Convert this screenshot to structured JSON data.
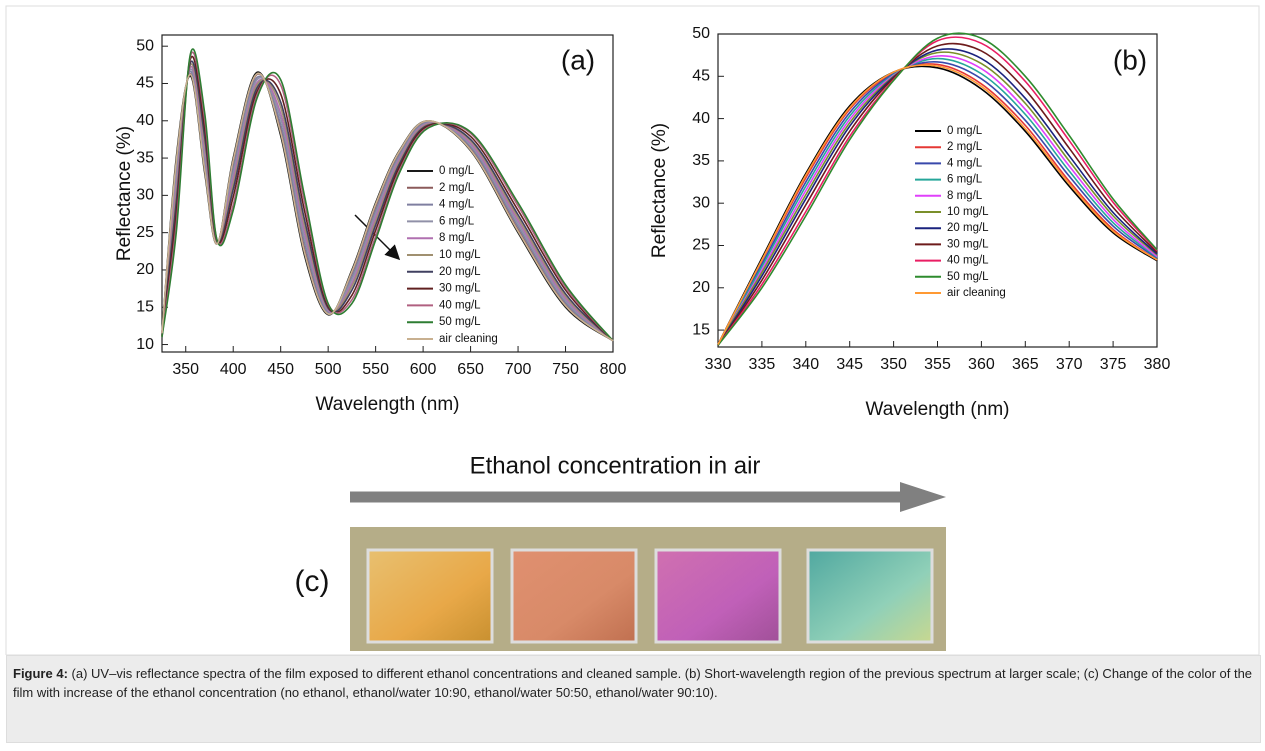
{
  "chart_data": [
    {
      "type": "line",
      "panel_label": "(a)",
      "x_label": "Wavelength (nm)",
      "y_label": "Reflectance (%)",
      "xlim": [
        325,
        800
      ],
      "ylim": [
        9,
        51.5
      ],
      "xticks": [
        350,
        400,
        450,
        500,
        550,
        600,
        650,
        700,
        750,
        800
      ],
      "yticks": [
        10,
        15,
        20,
        25,
        30,
        35,
        40,
        45,
        50
      ],
      "x": [
        325,
        340,
        355,
        370,
        383,
        400,
        425,
        450,
        475,
        500,
        525,
        550,
        575,
        605,
        650,
        700,
        750,
        800
      ],
      "series": [
        {
          "name": "0 mg/L",
          "color": "#1a1a1a",
          "values": [
            11.5,
            35,
            46,
            33,
            23.5,
            35,
            46.5,
            38,
            22,
            14,
            20,
            29,
            36,
            40,
            36,
            25,
            15,
            10.5
          ]
        },
        {
          "name": "2 mg/L",
          "color": "#8b5a5a",
          "values": [
            11.5,
            34,
            46.3,
            33.8,
            23.6,
            34.3,
            46.2,
            38.8,
            22.8,
            14.2,
            19.6,
            28.5,
            35.7,
            39.9,
            36.3,
            25.4,
            15.3,
            10.5
          ]
        },
        {
          "name": "4 mg/L",
          "color": "#7f7fa0",
          "values": [
            11.4,
            33,
            46.6,
            34.6,
            23.6,
            33.6,
            45.8,
            39.5,
            23.6,
            14.3,
            19.1,
            28,
            35.4,
            39.8,
            36.5,
            25.8,
            15.6,
            10.5
          ]
        },
        {
          "name": "6 mg/L",
          "color": "#9090a8",
          "values": [
            11.4,
            32,
            46.9,
            35.4,
            23.7,
            32.9,
            45.5,
            40.3,
            24.4,
            14.5,
            18.7,
            27.5,
            35.1,
            39.7,
            36.8,
            26.2,
            15.9,
            10.5
          ]
        },
        {
          "name": "8 mg/L",
          "color": "#b070b0",
          "values": [
            11.3,
            31,
            47.2,
            36.2,
            23.7,
            32.2,
            45.1,
            41,
            25.2,
            14.6,
            18.2,
            27,
            34.8,
            39.6,
            37,
            26.6,
            16.2,
            10.5
          ]
        },
        {
          "name": "10 mg/L",
          "color": "#a09070",
          "values": [
            11.3,
            30,
            47.5,
            37,
            23.8,
            31.5,
            44.8,
            41.8,
            26,
            14.8,
            17.8,
            26.5,
            34.5,
            39.5,
            37.3,
            27,
            16.5,
            10.5
          ]
        },
        {
          "name": "20 mg/L",
          "color": "#404060",
          "values": [
            11.2,
            29,
            47.8,
            37.8,
            23.8,
            30.8,
            44.4,
            42.5,
            26.8,
            14.9,
            17.3,
            26,
            34.2,
            39.4,
            37.5,
            27.4,
            16.8,
            10.5
          ]
        },
        {
          "name": "30 mg/L",
          "color": "#602020",
          "values": [
            11.1,
            27.5,
            48.3,
            39,
            23.9,
            29.8,
            43.9,
            43.6,
            28,
            15.1,
            16.6,
            25.3,
            33.8,
            39.3,
            37.9,
            28,
            17.3,
            10.5
          ]
        },
        {
          "name": "40 mg/L",
          "color": "#b06080",
          "values": [
            11.1,
            26,
            48.7,
            40.2,
            24,
            28.7,
            43.4,
            44.8,
            29.2,
            15.4,
            16,
            24.5,
            33.3,
            39.1,
            38.3,
            28.6,
            17.7,
            10.5
          ]
        },
        {
          "name": "50 mg/L",
          "color": "#2e7d32",
          "values": [
            11,
            25,
            49,
            41,
            24,
            28,
            43,
            45.5,
            30,
            15.5,
            15.5,
            24,
            33,
            39,
            38.5,
            29,
            18,
            10.5
          ]
        },
        {
          "name": "air cleaning",
          "color": "#c8b090",
          "values": [
            11.5,
            34.5,
            46.2,
            33.4,
            23.5,
            34.7,
            46.3,
            38.4,
            22.4,
            14.1,
            19.8,
            28.8,
            35.9,
            40,
            36.1,
            25.2,
            15.2,
            10.5
          ]
        }
      ]
    },
    {
      "type": "line",
      "panel_label": "(b)",
      "x_label": "Wavelength (nm)",
      "y_label": "Reflectance (%)",
      "xlim": [
        330,
        380
      ],
      "ylim": [
        13,
        50
      ],
      "xticks": [
        330,
        335,
        340,
        345,
        350,
        355,
        360,
        365,
        370,
        375,
        380
      ],
      "yticks": [
        15,
        20,
        25,
        30,
        35,
        40,
        45,
        50
      ],
      "x": [
        330,
        335,
        340,
        345,
        350,
        355,
        360,
        365,
        370,
        375,
        380
      ],
      "series": [
        {
          "name": "0 mg/L",
          "color": "#000000",
          "values": [
            13.3,
            23.5,
            33.5,
            41.5,
            45.5,
            46,
            43.5,
            38.5,
            32,
            26.5,
            23.2
          ]
        },
        {
          "name": "2 mg/L",
          "color": "#e53935",
          "values": [
            13.3,
            23.2,
            33,
            41.1,
            45.4,
            46.4,
            44.1,
            39.2,
            32.6,
            26.9,
            23.3
          ]
        },
        {
          "name": "4 mg/L",
          "color": "#3949ab",
          "values": [
            13.3,
            22.8,
            32.5,
            40.7,
            45.3,
            46.7,
            44.7,
            39.8,
            33.2,
            27.3,
            23.5
          ]
        },
        {
          "name": "6 mg/L",
          "color": "#26a69a",
          "values": [
            13.3,
            22.5,
            32,
            40.3,
            45.2,
            47.1,
            45.3,
            40.5,
            33.8,
            27.7,
            23.6
          ]
        },
        {
          "name": "8 mg/L",
          "color": "#e040fb",
          "values": [
            13.3,
            22.1,
            31.5,
            39.9,
            45.1,
            47.4,
            45.9,
            41.1,
            34.4,
            28.1,
            23.7
          ]
        },
        {
          "name": "10 mg/L",
          "color": "#7a8f2a",
          "values": [
            13.3,
            21.8,
            31,
            39.5,
            45,
            47.8,
            46.5,
            41.8,
            35,
            28.5,
            23.9
          ]
        },
        {
          "name": "20 mg/L",
          "color": "#1a237e",
          "values": [
            13.2,
            21.4,
            30.5,
            39.1,
            44.9,
            48.1,
            47.1,
            42.4,
            35.6,
            28.9,
            24
          ]
        },
        {
          "name": "30 mg/L",
          "color": "#6d1b1b",
          "values": [
            13.2,
            20.9,
            29.8,
            38.5,
            44.8,
            48.6,
            48,
            43.4,
            36.5,
            29.5,
            24.2
          ]
        },
        {
          "name": "40 mg/L",
          "color": "#e91e63",
          "values": [
            13.2,
            20.4,
            29,
            37.9,
            44.6,
            49.2,
            48.9,
            44.4,
            37.4,
            30.1,
            24.4
          ]
        },
        {
          "name": "50 mg/L",
          "color": "#2e8b2e",
          "values": [
            13.2,
            20,
            28.5,
            37.5,
            44.5,
            49.5,
            49.5,
            45,
            38,
            30.5,
            24.5
          ]
        },
        {
          "name": "air cleaning",
          "color": "#ff9933",
          "values": [
            13.3,
            23.3,
            33.3,
            41.3,
            45.5,
            46.2,
            43.8,
            38.8,
            32.3,
            26.7,
            23.3
          ]
        }
      ]
    }
  ],
  "panel_c": {
    "arrow_label": "Ethanol concentration in air",
    "label": "(c)"
  },
  "caption": {
    "label": "Figure 4:",
    "text": "(a) UV–vis reflectance spectra of the film exposed to different ethanol concentrations and cleaned sample. (b) Short-wavelength region of the previous spectrum at larger scale; (c) Change of the color of the film with increase of the ethanol concentration (no ethanol, ethanol/water 10:90, ethanol/water 50:50, ethanol/water 90:10)."
  }
}
